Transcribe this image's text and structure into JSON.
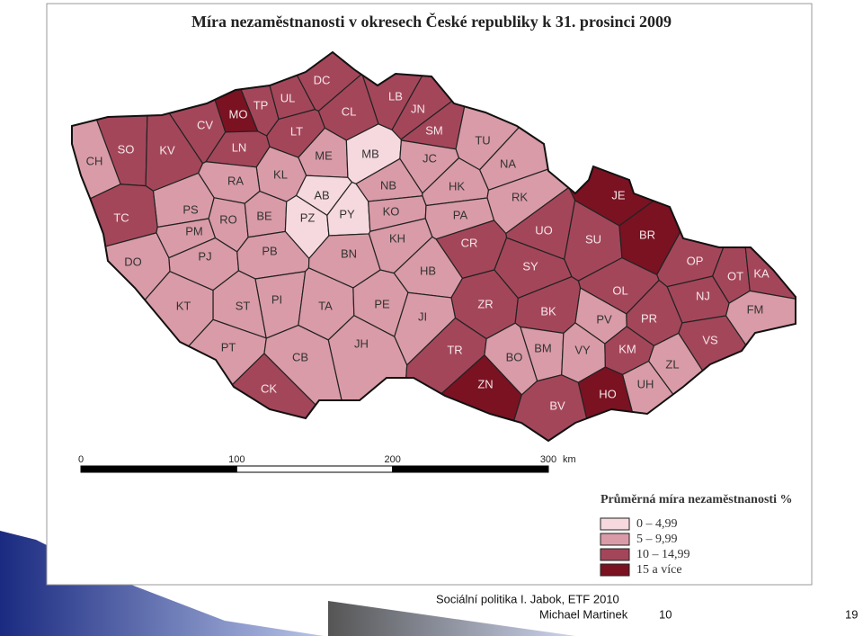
{
  "map": {
    "title": "Míra nezaměstnanosti v okresech České republiky k 31. prosinci 2009",
    "districts": [
      {
        "code": "DC",
        "class": 2
      },
      {
        "code": "UL",
        "class": 2
      },
      {
        "code": "TP",
        "class": 2
      },
      {
        "code": "MO",
        "class": 3
      },
      {
        "code": "LB",
        "class": 2
      },
      {
        "code": "JN",
        "class": 2
      },
      {
        "code": "CV",
        "class": 2
      },
      {
        "code": "CL",
        "class": 2
      },
      {
        "code": "LT",
        "class": 2
      },
      {
        "code": "SM",
        "class": 2
      },
      {
        "code": "TU",
        "class": 1
      },
      {
        "code": "SO",
        "class": 2
      },
      {
        "code": "KV",
        "class": 2
      },
      {
        "code": "LN",
        "class": 2
      },
      {
        "code": "CH",
        "class": 1
      },
      {
        "code": "ME",
        "class": 1
      },
      {
        "code": "MB",
        "class": 0
      },
      {
        "code": "JC",
        "class": 1
      },
      {
        "code": "NA",
        "class": 1
      },
      {
        "code": "KL",
        "class": 1
      },
      {
        "code": "RA",
        "class": 1
      },
      {
        "code": "NB",
        "class": 1
      },
      {
        "code": "HK",
        "class": 1
      },
      {
        "code": "JE",
        "class": 3
      },
      {
        "code": "AB",
        "class": 0
      },
      {
        "code": "RK",
        "class": 1
      },
      {
        "code": "PS",
        "class": 1
      },
      {
        "code": "TC",
        "class": 2
      },
      {
        "code": "RO",
        "class": 1
      },
      {
        "code": "BE",
        "class": 1
      },
      {
        "code": "PZ",
        "class": 0
      },
      {
        "code": "PY",
        "class": 0
      },
      {
        "code": "KO",
        "class": 1
      },
      {
        "code": "PA",
        "class": 1
      },
      {
        "code": "BR",
        "class": 3
      },
      {
        "code": "PM",
        "class": 1
      },
      {
        "code": "UO",
        "class": 2
      },
      {
        "code": "SU",
        "class": 2
      },
      {
        "code": "KH",
        "class": 1
      },
      {
        "code": "CR",
        "class": 2
      },
      {
        "code": "PJ",
        "class": 1
      },
      {
        "code": "PB",
        "class": 1
      },
      {
        "code": "BN",
        "class": 1
      },
      {
        "code": "SY",
        "class": 2
      },
      {
        "code": "OP",
        "class": 2
      },
      {
        "code": "DO",
        "class": 1
      },
      {
        "code": "OT",
        "class": 2
      },
      {
        "code": "KA",
        "class": 2
      },
      {
        "code": "HB",
        "class": 1
      },
      {
        "code": "OL",
        "class": 2
      },
      {
        "code": "NJ",
        "class": 2
      },
      {
        "code": "PI",
        "class": 1
      },
      {
        "code": "ST",
        "class": 1
      },
      {
        "code": "ZR",
        "class": 2
      },
      {
        "code": "TA",
        "class": 1
      },
      {
        "code": "PE",
        "class": 1
      },
      {
        "code": "KT",
        "class": 1
      },
      {
        "code": "BK",
        "class": 2
      },
      {
        "code": "FM",
        "class": 1
      },
      {
        "code": "PV",
        "class": 1
      },
      {
        "code": "JI",
        "class": 1
      },
      {
        "code": "PR",
        "class": 2
      },
      {
        "code": "JH",
        "class": 1
      },
      {
        "code": "TR",
        "class": 2
      },
      {
        "code": "BM",
        "class": 1
      },
      {
        "code": "VY",
        "class": 1
      },
      {
        "code": "KM",
        "class": 2
      },
      {
        "code": "VS",
        "class": 2
      },
      {
        "code": "PT",
        "class": 1
      },
      {
        "code": "CB",
        "class": 1
      },
      {
        "code": "BO",
        "class": 1
      },
      {
        "code": "ZL",
        "class": 1
      },
      {
        "code": "ZN",
        "class": 3
      },
      {
        "code": "UH",
        "class": 1
      },
      {
        "code": "CK",
        "class": 2
      },
      {
        "code": "HO",
        "class": 3
      },
      {
        "code": "BV",
        "class": 2
      }
    ],
    "scale": {
      "ticks": [
        0,
        100,
        200,
        300
      ],
      "unit": "km"
    },
    "legend": {
      "title": "Průměrná míra nezaměstnanosti %",
      "items": [
        {
          "label": "0 – 4,99",
          "color": "#f6d9df"
        },
        {
          "label": "5 – 9,99",
          "color": "#d99ba7"
        },
        {
          "label": "10 – 14,99",
          "color": "#a4465a"
        },
        {
          "label": "15 a více",
          "color": "#7a1222"
        }
      ]
    }
  },
  "footer": {
    "line1": "Sociální politika I. Jabok, ETF 2010",
    "line2": "Michael Martinek",
    "page": "10",
    "slide": "19"
  }
}
